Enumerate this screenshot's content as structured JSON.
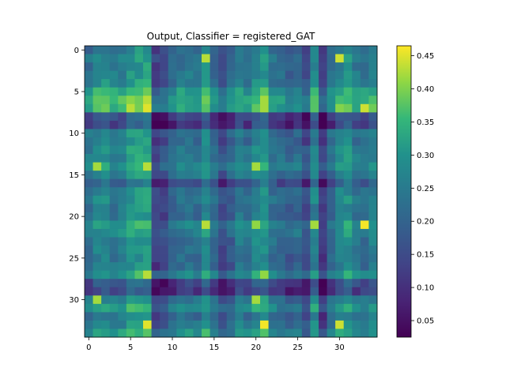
{
  "chart_data": {
    "type": "heatmap",
    "title": "Output, Classifier = registered_GAT",
    "rows": 35,
    "cols": 35,
    "x_ticks": [
      0,
      5,
      10,
      15,
      20,
      25,
      30
    ],
    "y_ticks": [
      0,
      5,
      10,
      15,
      20,
      25,
      30
    ],
    "colorbar": {
      "min": 0.025,
      "max": 0.465,
      "ticks": [
        0.05,
        0.1,
        0.15,
        0.2,
        0.25,
        0.3,
        0.35,
        0.4,
        0.45
      ],
      "tick_labels": [
        "0.05",
        "0.10",
        "0.15",
        "0.20",
        "0.25",
        "0.30",
        "0.35",
        "0.40",
        "0.45"
      ],
      "colormap": "viridis"
    },
    "row_profile": [
      0.22,
      0.24,
      0.23,
      0.24,
      0.25,
      0.31,
      0.33,
      0.34,
      0.14,
      0.12,
      0.24,
      0.22,
      0.25,
      0.25,
      0.28,
      0.24,
      0.17,
      0.23,
      0.24,
      0.22,
      0.22,
      0.27,
      0.26,
      0.23,
      0.23,
      0.22,
      0.22,
      0.28,
      0.14,
      0.12,
      0.24,
      0.28,
      0.22,
      0.25,
      0.29
    ],
    "col_profile": [
      0.24,
      0.28,
      0.29,
      0.26,
      0.27,
      0.31,
      0.32,
      0.33,
      0.14,
      0.16,
      0.21,
      0.24,
      0.25,
      0.24,
      0.3,
      0.22,
      0.16,
      0.2,
      0.26,
      0.23,
      0.29,
      0.31,
      0.24,
      0.22,
      0.2,
      0.22,
      0.16,
      0.28,
      0.13,
      0.22,
      0.28,
      0.3,
      0.25,
      0.24,
      0.27
    ],
    "highlights": [
      {
        "row": 1,
        "col": 14,
        "value": 0.43
      },
      {
        "row": 1,
        "col": 30,
        "value": 0.44
      },
      {
        "row": 7,
        "col": 7,
        "value": 0.45
      },
      {
        "row": 7,
        "col": 21,
        "value": 0.42
      },
      {
        "row": 7,
        "col": 33,
        "value": 0.44
      },
      {
        "row": 14,
        "col": 1,
        "value": 0.42
      },
      {
        "row": 14,
        "col": 7,
        "value": 0.43
      },
      {
        "row": 14,
        "col": 20,
        "value": 0.42
      },
      {
        "row": 21,
        "col": 14,
        "value": 0.43
      },
      {
        "row": 21,
        "col": 20,
        "value": 0.41
      },
      {
        "row": 21,
        "col": 27,
        "value": 0.42
      },
      {
        "row": 21,
        "col": 33,
        "value": 0.46
      },
      {
        "row": 27,
        "col": 7,
        "value": 0.43
      },
      {
        "row": 27,
        "col": 21,
        "value": 0.41
      },
      {
        "row": 30,
        "col": 1,
        "value": 0.42
      },
      {
        "row": 30,
        "col": 20,
        "value": 0.42
      },
      {
        "row": 33,
        "col": 7,
        "value": 0.45
      },
      {
        "row": 33,
        "col": 21,
        "value": 0.46
      },
      {
        "row": 33,
        "col": 30,
        "value": 0.44
      }
    ]
  }
}
